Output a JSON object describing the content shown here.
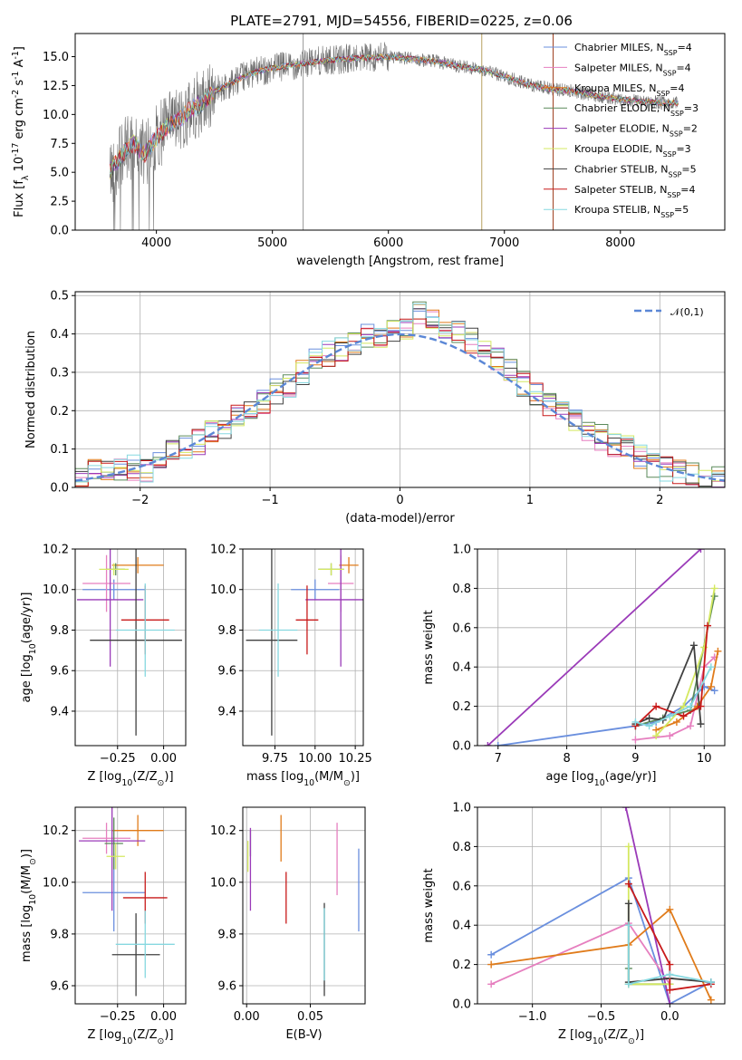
{
  "title": "PLATE=2791, MJD=54556, FIBERID=0225, z=0.06",
  "models": [
    {
      "name": "Chabrier MILES, N$_{SSP}$=4",
      "color": "#6a8fde"
    },
    {
      "name": "Salpeter MILES, N$_{SSP}$=4",
      "color": "#e67fbf"
    },
    {
      "name": "Kroupa MILES, N$_{SSP}$=4",
      "color": "#e07b1a"
    },
    {
      "name": "Chabrier ELODIE, N$_{SSP}$=3",
      "color": "#5a8a5a"
    },
    {
      "name": "Salpeter ELODIE, N$_{SSP}$=2",
      "color": "#9a3ab8"
    },
    {
      "name": "Kroupa ELODIE, N$_{SSP}$=3",
      "color": "#d4e860"
    },
    {
      "name": "Chabrier STELIB, N$_{SSP}$=5",
      "color": "#404040"
    },
    {
      "name": "Salpeter STELIB, N$_{SSP}$=4",
      "color": "#c81a1a"
    },
    {
      "name": "Kroupa STELIB, N$_{SSP}$=5",
      "color": "#86d8e0"
    }
  ],
  "chart_data": [
    {
      "id": "spectrum",
      "type": "line",
      "title": "PLATE=2791, MJD=54556, FIBERID=0225, z=0.06",
      "xlabel": "wavelength [Angstrom, rest frame]",
      "ylabel": "Flux [f$_\\lambda$ 10$^{-17}$ erg cm$^{-2}$ s$^{-1}$ A$^{-1}$]",
      "xlim": [
        3300,
        8900
      ],
      "ylim": [
        0,
        17
      ],
      "xticks": [
        4000,
        5000,
        6000,
        7000,
        8000
      ],
      "yticks": [
        0.0,
        2.5,
        5.0,
        7.5,
        10.0,
        12.5,
        15.0
      ],
      "grid": false,
      "legend": "upper right",
      "data_trend": {
        "x": [
          3600,
          3700,
          3800,
          3900,
          4000,
          4100,
          4200,
          4300,
          4400,
          4500,
          4600,
          4700,
          4800,
          4900,
          5000,
          5200,
          5400,
          5600,
          5800,
          6000,
          6200,
          6400,
          6600,
          6800,
          7000,
          7200,
          7400,
          7600,
          7800,
          8000,
          8200,
          8400
        ],
        "y": [
          5.0,
          6.5,
          7.5,
          6.5,
          8.0,
          9.0,
          9.5,
          10.5,
          11.0,
          12.0,
          12.5,
          13.0,
          13.5,
          13.8,
          14.0,
          14.3,
          14.6,
          14.8,
          14.9,
          15.0,
          14.8,
          14.6,
          14.2,
          13.9,
          13.3,
          12.6,
          12.2,
          12.0,
          11.6,
          11.3,
          11.1,
          11.0
        ]
      }
    },
    {
      "id": "residuals",
      "type": "area",
      "xlabel": "(data-model)/error",
      "ylabel": "Normed distribution",
      "xlim": [
        -2.5,
        2.5
      ],
      "ylim": [
        0,
        0.51
      ],
      "xticks": [
        -2,
        -1,
        0,
        1,
        2
      ],
      "yticks": [
        0.0,
        0.1,
        0.2,
        0.3,
        0.4,
        0.5
      ],
      "grid": true,
      "legend": "upper right",
      "reference_label": "$\\mathcal{N}(0,1)$",
      "bin_width": 0.1,
      "hist_series_example": [
        0.03,
        0.04,
        0.04,
        0.05,
        0.05,
        0.04,
        0.06,
        0.09,
        0.1,
        0.12,
        0.14,
        0.15,
        0.18,
        0.2,
        0.22,
        0.25,
        0.27,
        0.3,
        0.33,
        0.35,
        0.36,
        0.38,
        0.39,
        0.4,
        0.4,
        0.42,
        0.45,
        0.44,
        0.42,
        0.4,
        0.38,
        0.35,
        0.33,
        0.3,
        0.27,
        0.24,
        0.22,
        0.19,
        0.17,
        0.14,
        0.13,
        0.11,
        0.1,
        0.08,
        0.06,
        0.05,
        0.04,
        0.03,
        0.02,
        0.02
      ]
    },
    {
      "id": "Z_vs_age",
      "type": "scatter",
      "xlabel": "Z [log$_{10}$(Z/Z$_\\odot$)]",
      "ylabel": "age  [log$_{10}$(age/yr)]",
      "xlim": [
        -0.48,
        0.12
      ],
      "ylim": [
        9.23,
        10.2
      ],
      "xticks": [
        -0.25,
        0.0
      ],
      "yticks": [
        9.4,
        9.6,
        9.8,
        10.0,
        10.2
      ],
      "grid": true,
      "points": [
        {
          "model": 0,
          "x": -0.27,
          "xerr": 0.17,
          "y": 10.0,
          "yerr": 0.05
        },
        {
          "model": 1,
          "x": -0.31,
          "xerr": 0.13,
          "y": 10.03,
          "yerr": 0.14
        },
        {
          "model": 2,
          "x": -0.14,
          "xerr": 0.14,
          "y": 10.12,
          "yerr": 0.04
        },
        {
          "model": 3,
          "x": -0.26,
          "xerr": 0.05,
          "y": 10.1,
          "yerr": 0.03
        },
        {
          "model": 4,
          "x": -0.29,
          "xerr": 0.18,
          "y": 9.95,
          "yerr": 0.33
        },
        {
          "model": 5,
          "x": -0.27,
          "xerr": 0.08,
          "y": 10.1,
          "yerr": 0.03
        },
        {
          "model": 6,
          "x": -0.15,
          "xerr": 0.25,
          "y": 9.75,
          "yerr": 0.47
        },
        {
          "model": 7,
          "x": -0.1,
          "xerr": 0.13,
          "y": 9.85,
          "yerr": 0.17
        },
        {
          "model": 8,
          "x": -0.1,
          "xerr": 0.16,
          "y": 9.8,
          "yerr": 0.23
        }
      ]
    },
    {
      "id": "mass_vs_age",
      "type": "scatter",
      "xlabel": "mass [log$_{10}$(M/M$_\\odot$)]",
      "ylabel": "",
      "xlim": [
        9.55,
        10.3
      ],
      "ylim": [
        9.23,
        10.2
      ],
      "xticks": [
        9.75,
        10.0,
        10.25
      ],
      "yticks": [
        9.4,
        9.6,
        9.8,
        10.0,
        10.2
      ],
      "grid": true,
      "points": [
        {
          "model": 0,
          "x": 10.0,
          "xerr": 0.15,
          "y": 10.0,
          "yerr": 0.05
        },
        {
          "model": 1,
          "x": 10.16,
          "xerr": 0.08,
          "y": 10.03,
          "yerr": 0.14
        },
        {
          "model": 2,
          "x": 10.21,
          "xerr": 0.06,
          "y": 10.12,
          "yerr": 0.04
        },
        {
          "model": 3,
          "x": 10.1,
          "xerr": 0.08,
          "y": 10.1,
          "yerr": 0.03
        },
        {
          "model": 4,
          "x": 10.16,
          "xerr": 0.22,
          "y": 9.95,
          "yerr": 0.33
        },
        {
          "model": 5,
          "x": 10.1,
          "xerr": 0.08,
          "y": 10.1,
          "yerr": 0.03
        },
        {
          "model": 6,
          "x": 9.73,
          "xerr": 0.16,
          "y": 9.75,
          "yerr": 0.47
        },
        {
          "model": 7,
          "x": 9.95,
          "xerr": 0.07,
          "y": 9.85,
          "yerr": 0.17
        },
        {
          "model": 8,
          "x": 9.77,
          "xerr": 0.12,
          "y": 9.8,
          "yerr": 0.23
        }
      ]
    },
    {
      "id": "age_vs_weight",
      "type": "line",
      "xlabel": "age  [log$_{10}$(age/yr)]",
      "ylabel": "mass weight",
      "xlim": [
        6.7,
        10.3
      ],
      "ylim": [
        0,
        1.0
      ],
      "xticks": [
        7,
        8,
        9,
        10
      ],
      "yticks": [
        0.0,
        0.2,
        0.4,
        0.6,
        0.8,
        1.0
      ],
      "grid": true,
      "series": [
        {
          "model": 0,
          "x": [
            7.0,
            9.0,
            9.3,
            9.7,
            10.0,
            10.15
          ],
          "y": [
            0.0,
            0.1,
            0.12,
            0.2,
            0.3,
            0.28
          ]
        },
        {
          "model": 1,
          "x": [
            9.0,
            9.5,
            9.8,
            10.0,
            10.15
          ],
          "y": [
            0.03,
            0.05,
            0.1,
            0.4,
            0.45
          ]
        },
        {
          "model": 2,
          "x": [
            9.3,
            9.6,
            9.9,
            10.1,
            10.2
          ],
          "y": [
            0.08,
            0.12,
            0.2,
            0.3,
            0.48
          ]
        },
        {
          "model": 3,
          "x": [
            9.0,
            9.4,
            9.8,
            10.15
          ],
          "y": [
            0.1,
            0.14,
            0.18,
            0.76
          ]
        },
        {
          "model": 4,
          "x": [
            6.85,
            9.95
          ],
          "y": [
            0.0,
            1.0
          ]
        },
        {
          "model": 5,
          "x": [
            9.3,
            9.7,
            10.0,
            10.15
          ],
          "y": [
            0.05,
            0.2,
            0.5,
            0.8
          ]
        },
        {
          "model": 6,
          "x": [
            9.0,
            9.2,
            9.4,
            9.85,
            9.95
          ],
          "y": [
            0.11,
            0.14,
            0.13,
            0.51,
            0.11
          ]
        },
        {
          "model": 7,
          "x": [
            9.0,
            9.3,
            9.7,
            9.95,
            10.05
          ],
          "y": [
            0.1,
            0.2,
            0.15,
            0.2,
            0.61
          ]
        },
        {
          "model": 8,
          "x": [
            9.0,
            9.2,
            9.5,
            9.8,
            10.1
          ],
          "y": [
            0.12,
            0.1,
            0.15,
            0.2,
            0.4
          ]
        }
      ]
    },
    {
      "id": "Z_vs_mass",
      "type": "scatter",
      "xlabel": "Z [log$_{10}$(Z/Z$_\\odot$)]",
      "ylabel": "mass [log$_{10}$(M/M$_\\odot$)]",
      "xlim": [
        -0.48,
        0.12
      ],
      "ylim": [
        9.53,
        10.29
      ],
      "xticks": [
        -0.25,
        0.0
      ],
      "yticks": [
        9.6,
        9.8,
        10.0,
        10.2
      ],
      "grid": true,
      "points": [
        {
          "model": 0,
          "x": -0.27,
          "xerr": 0.17,
          "y": 9.96,
          "yerr": 0.15
        },
        {
          "model": 1,
          "x": -0.31,
          "xerr": 0.13,
          "y": 10.17,
          "yerr": 0.06
        },
        {
          "model": 2,
          "x": -0.14,
          "xerr": 0.14,
          "y": 10.2,
          "yerr": 0.06
        },
        {
          "model": 3,
          "x": -0.27,
          "xerr": 0.05,
          "y": 10.15,
          "yerr": 0.1
        },
        {
          "model": 4,
          "x": -0.28,
          "xerr": 0.18,
          "y": 10.16,
          "yerr": 0.27
        },
        {
          "model": 5,
          "x": -0.26,
          "xerr": 0.05,
          "y": 10.1,
          "yerr": 0.05
        },
        {
          "model": 6,
          "x": -0.15,
          "xerr": 0.13,
          "y": 9.72,
          "yerr": 0.16
        },
        {
          "model": 7,
          "x": -0.1,
          "xerr": 0.12,
          "y": 9.94,
          "yerr": 0.1
        },
        {
          "model": 8,
          "x": -0.1,
          "xerr": 0.16,
          "y": 9.76,
          "yerr": 0.13
        }
      ]
    },
    {
      "id": "EBV_vs_mass",
      "type": "scatter",
      "xlabel": "E(B-V)",
      "ylabel": "",
      "xlim": [
        -0.003,
        0.093
      ],
      "ylim": [
        9.53,
        10.29
      ],
      "xticks": [
        0.0,
        0.05
      ],
      "yticks": [
        9.6,
        9.8,
        10.0,
        10.2
      ],
      "grid": true,
      "points": [
        {
          "model": 0,
          "x": 0.088,
          "y": 9.97,
          "yerr": 0.16
        },
        {
          "model": 1,
          "x": 0.071,
          "y": 10.09,
          "yerr": 0.14
        },
        {
          "model": 2,
          "x": 0.027,
          "y": 10.17,
          "yerr": 0.09
        },
        {
          "model": 3,
          "x": 0.003,
          "y": 10.15,
          "yerr": 0.05
        },
        {
          "model": 4,
          "x": 0.003,
          "y": 10.05,
          "yerr": 0.16
        },
        {
          "model": 5,
          "x": 0.001,
          "y": 10.1,
          "yerr": 0.06
        },
        {
          "model": 6,
          "x": 0.061,
          "y": 9.74,
          "yerr": 0.18
        },
        {
          "model": 7,
          "x": 0.031,
          "y": 9.94,
          "yerr": 0.1
        },
        {
          "model": 8,
          "x": 0.061,
          "y": 9.76,
          "yerr": 0.14
        }
      ]
    },
    {
      "id": "Z_vs_weight",
      "type": "line",
      "xlabel": "Z [log$_{10}$(Z/Z$_\\odot$)]",
      "ylabel": "mass weight",
      "xlim": [
        -1.4,
        0.4
      ],
      "ylim": [
        0,
        1.0
      ],
      "xticks": [
        -1.0,
        -0.5,
        0.0
      ],
      "yticks": [
        0.0,
        0.2,
        0.4,
        0.6,
        0.8,
        1.0
      ],
      "grid": true,
      "series": [
        {
          "model": 0,
          "x": [
            -1.3,
            -0.3,
            0.0,
            0.3
          ],
          "y": [
            0.25,
            0.64,
            0.0,
            0.11
          ]
        },
        {
          "model": 1,
          "x": [
            -1.3,
            -0.3,
            0.0
          ],
          "y": [
            0.1,
            0.41,
            0.1
          ]
        },
        {
          "model": 2,
          "x": [
            -1.3,
            -0.3,
            0.0,
            0.3
          ],
          "y": [
            0.2,
            0.3,
            0.48,
            0.02
          ]
        },
        {
          "model": 3,
          "x": [
            -0.3,
            -0.3,
            0.0
          ],
          "y": [
            0.18,
            0.1,
            0.1
          ]
        },
        {
          "model": 4,
          "x": [
            -0.32,
            0.0
          ],
          "y": [
            1.0,
            0.0
          ]
        },
        {
          "model": 5,
          "x": [
            -0.3,
            -0.3,
            0.0
          ],
          "y": [
            0.8,
            0.1,
            0.1
          ]
        },
        {
          "model": 6,
          "x": [
            -0.3,
            -0.3,
            0.0,
            0.3
          ],
          "y": [
            0.51,
            0.11,
            0.13,
            0.11
          ]
        },
        {
          "model": 7,
          "x": [
            -0.3,
            0.0,
            0.0,
            0.3
          ],
          "y": [
            0.61,
            0.2,
            0.07,
            0.1
          ]
        },
        {
          "model": 8,
          "x": [
            -0.3,
            -0.3,
            0.0,
            0.3
          ],
          "y": [
            0.4,
            0.1,
            0.15,
            0.11
          ]
        }
      ]
    }
  ]
}
